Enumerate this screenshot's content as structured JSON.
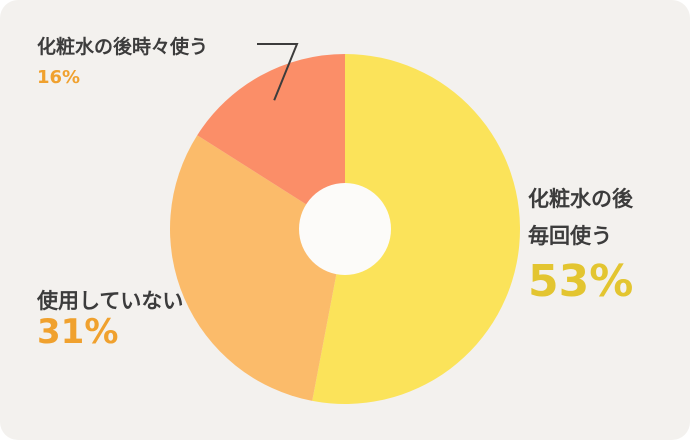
{
  "chart_data": {
    "type": "pie",
    "style": "donut",
    "slices": [
      {
        "label": "化粧水の後毎回使う",
        "label_lines": [
          "化粧水の後",
          "毎回使う"
        ],
        "value": 53,
        "value_label": "53%",
        "color": "#fbe35a",
        "label_color": "#e3c530"
      },
      {
        "label": "使用していない",
        "label_lines": [
          "使用していない"
        ],
        "value": 31,
        "value_label": "31%",
        "color": "#fbbb6a",
        "label_color": "#f0a12e"
      },
      {
        "label": "化粧水の後時々使う",
        "label_lines": [
          "化粧水の後時々使う"
        ],
        "value": 16,
        "value_label": "16%",
        "color": "#fb8e68",
        "label_color": "#f0a12e"
      }
    ],
    "start_angle_deg": 0,
    "direction": "clockwise",
    "center_hole_color": "#fcfbf9",
    "leader_line_color": "#3c3c3c"
  }
}
